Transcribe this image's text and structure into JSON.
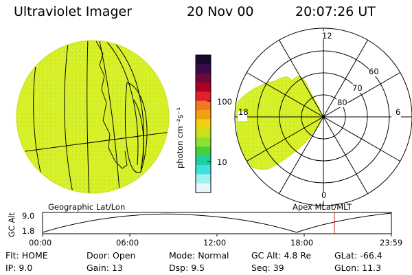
{
  "header": {
    "instrument": "Ultraviolet Imager",
    "date": "20 Nov 00",
    "time": "20:07:26 UT"
  },
  "colorbar": {
    "unit_label": "photon cm⁻²s⁻¹",
    "ticks": [
      "100",
      "10"
    ],
    "colors_top_to_bottom": [
      "#1a0a2e",
      "#3a0a4a",
      "#6a0a3a",
      "#b00020",
      "#e0202a",
      "#f07820",
      "#f0a010",
      "#f0d010",
      "#c8e020",
      "#90e030",
      "#40d040",
      "#20d0a0",
      "#40e0e0",
      "#a0f0f0",
      "#e8f8f8"
    ]
  },
  "geo_map": {
    "label": "Geographic Lat/Lon",
    "fill_color": "#d8f028"
  },
  "polar_map": {
    "label": "Apex MLat/MLT",
    "mlt_labels": {
      "top": "12",
      "bottom": "0",
      "left": "18",
      "right": "6"
    },
    "lat_labels": [
      "60",
      "70",
      "80"
    ],
    "fill_color": "#d8f028"
  },
  "altitude_plot": {
    "ylabel": "GC Alt",
    "yticks": [
      "9.0",
      "1.8"
    ],
    "xticks": [
      "00:00",
      "06:00",
      "12:00",
      "18:00",
      "23:59"
    ],
    "marker_color": "#cc2020"
  },
  "info": {
    "filter": "Flt: HOME",
    "ip": "IP:  9.0",
    "door": "Door: Open",
    "gain": "Gain: 13",
    "mode": "Mode: Normal",
    "dsp": "Dsp:     9.5",
    "gc_alt": "GC Alt: 4.8 Re",
    "seq": "Seq: 39",
    "glat": "GLat: -66.4",
    "glon": "GLon:  11.3"
  }
}
